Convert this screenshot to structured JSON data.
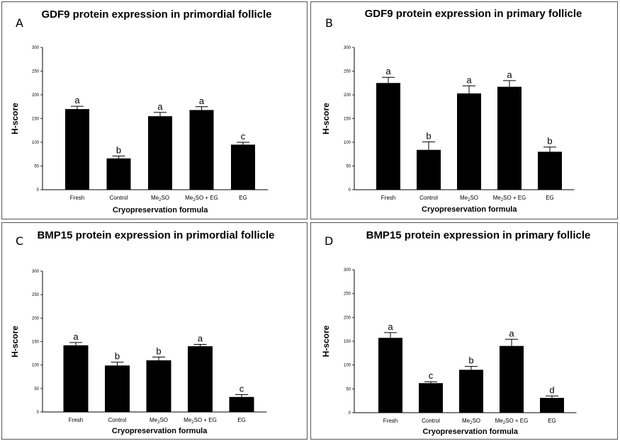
{
  "chart_data": [
    {
      "type": "bar",
      "panel_label": "A",
      "title": "GDF9 protein expression in primordial follicle",
      "xlabel": "Cryopreservation formula",
      "ylabel": "H-score",
      "ylim": [
        0,
        300
      ],
      "yticks": [
        "0",
        "50",
        "100",
        "150",
        "200",
        "250",
        "300"
      ],
      "categories": [
        {
          "main": "Fresh",
          "sub": "",
          "rest": ""
        },
        {
          "main": "Control",
          "sub": "",
          "rest": ""
        },
        {
          "main": "Me",
          "sub": "2",
          "rest": "SO"
        },
        {
          "main": "Me",
          "sub": "2",
          "rest": "SO + EG"
        },
        {
          "main": "EG",
          "sub": "",
          "rest": ""
        }
      ],
      "values": [
        170,
        66,
        155,
        168,
        95
      ],
      "errors": [
        6,
        5,
        8,
        7,
        5
      ],
      "significance": [
        "a",
        "b",
        "a",
        "a",
        "c"
      ],
      "bar_color": "#000000"
    },
    {
      "type": "bar",
      "panel_label": "B",
      "title": "GDF9 protein expression in primary follicle",
      "xlabel": "Cryopreservation formula",
      "ylabel": "H-score",
      "ylim": [
        0,
        300
      ],
      "yticks": [
        "0",
        "50",
        "100",
        "150",
        "200",
        "250",
        "300"
      ],
      "categories": [
        {
          "main": "Fresh",
          "sub": "",
          "rest": ""
        },
        {
          "main": "Control",
          "sub": "",
          "rest": ""
        },
        {
          "main": "Me",
          "sub": "2",
          "rest": "SO"
        },
        {
          "main": "Me",
          "sub": "2",
          "rest": "SO + EG"
        },
        {
          "main": "EG",
          "sub": "",
          "rest": ""
        }
      ],
      "values": [
        225,
        84,
        203,
        217,
        80
      ],
      "errors": [
        12,
        17,
        16,
        13,
        10
      ],
      "significance": [
        "a",
        "b",
        "a",
        "a",
        "b"
      ],
      "bar_color": "#000000"
    },
    {
      "type": "bar",
      "panel_label": "C",
      "title": "BMP15 protein expression in primordial follicle",
      "xlabel": "Cryopreservation formula",
      "ylabel": "H-score",
      "ylim": [
        0,
        300
      ],
      "yticks": [
        "0",
        "50",
        "100",
        "150",
        "200",
        "250",
        "300"
      ],
      "categories": [
        {
          "main": "Fresh",
          "sub": "",
          "rest": ""
        },
        {
          "main": "Control",
          "sub": "",
          "rest": ""
        },
        {
          "main": "Me",
          "sub": "2",
          "rest": "SO"
        },
        {
          "main": "Me",
          "sub": "2",
          "rest": "SO + EG"
        },
        {
          "main": "EG",
          "sub": "",
          "rest": ""
        }
      ],
      "values": [
        142,
        99,
        110,
        140,
        32
      ],
      "errors": [
        6,
        7,
        7,
        4,
        5
      ],
      "significance": [
        "a",
        "b",
        "b",
        "a",
        "c"
      ],
      "bar_color": "#000000"
    },
    {
      "type": "bar",
      "panel_label": "D",
      "title": "BMP15 protein expression in primary follicle",
      "xlabel": "Cryopreservation formula",
      "ylabel": "H-score",
      "ylim": [
        0,
        300
      ],
      "yticks": [
        "0",
        "50",
        "100",
        "150",
        "200",
        "250",
        "300"
      ],
      "categories": [
        {
          "main": "Fresh",
          "sub": "",
          "rest": ""
        },
        {
          "main": "Control",
          "sub": "",
          "rest": ""
        },
        {
          "main": "Me",
          "sub": "2",
          "rest": "SO"
        },
        {
          "main": "Me",
          "sub": "2",
          "rest": "SO + EG"
        },
        {
          "main": "EG",
          "sub": "",
          "rest": ""
        }
      ],
      "values": [
        157,
        62,
        90,
        140,
        31
      ],
      "errors": [
        11,
        3,
        7,
        14,
        4
      ],
      "significance": [
        "a",
        "c",
        "b",
        "a",
        "d"
      ],
      "bar_color": "#000000"
    }
  ]
}
